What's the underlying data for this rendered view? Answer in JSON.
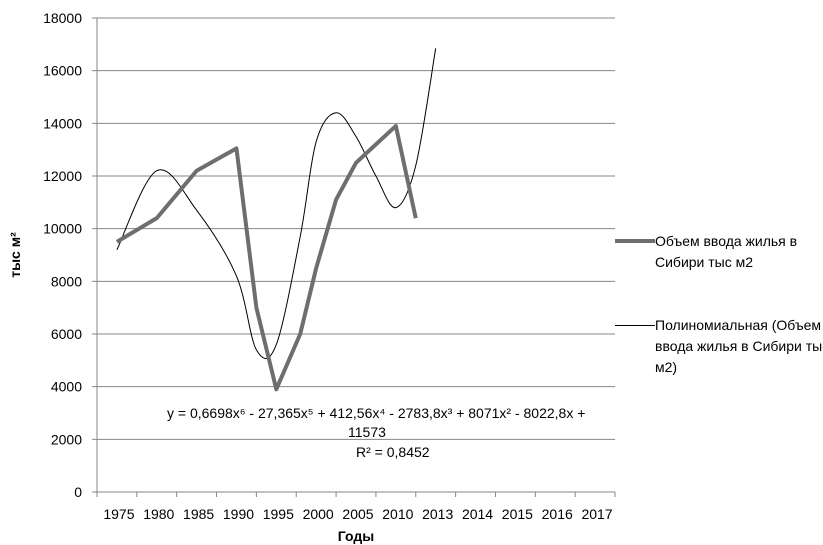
{
  "chart_data": {
    "type": "line",
    "xlabel": "Годы",
    "ylabel": "тыс м²",
    "ylim": [
      0,
      18000
    ],
    "y_ticks": [
      "0",
      "2000",
      "4000",
      "6000",
      "8000",
      "10000",
      "12000",
      "14000",
      "16000",
      "18000"
    ],
    "categories": [
      "1975",
      "1980",
      "1985",
      "1990",
      "1995",
      "2000",
      "2005",
      "2010",
      "2013",
      "2014",
      "2015",
      "2016",
      "2017"
    ],
    "x": [
      1.0,
      2.0,
      3.0,
      4.0,
      4.5,
      5.0,
      5.6,
      6.0,
      6.5,
      7.0,
      7.5,
      8.0,
      8.5,
      9.0
    ],
    "series": [
      {
        "name": "Объем ввода жилья в Сибири тыс м2",
        "values": [
          9500,
          10400,
          12200,
          13050,
          7000,
          3900,
          6000,
          8500,
          11100,
          12500,
          13200,
          13900,
          10400,
          null
        ]
      },
      {
        "name": "Полиномиальная (Объем ввода жилья в Сибири тыс м2)",
        "values": [
          9200,
          12200,
          10700,
          8200,
          5400,
          5600,
          9700,
          13300,
          14400,
          13500,
          12000,
          10800,
          12400,
          16850
        ],
        "trend": true
      }
    ],
    "equation": "y = 0,6698x⁶ - 27,365x⁵ + 412,56x⁴ - 2783,8x³ + 8071x² - 8022,8x +",
    "equation_line2": "11573",
    "r_squared": "R² = 0,8452",
    "grid": true,
    "legend_position": "right",
    "colors": {
      "series": "#6e6e6e",
      "trend": "#000000",
      "grid": "#868686"
    }
  }
}
